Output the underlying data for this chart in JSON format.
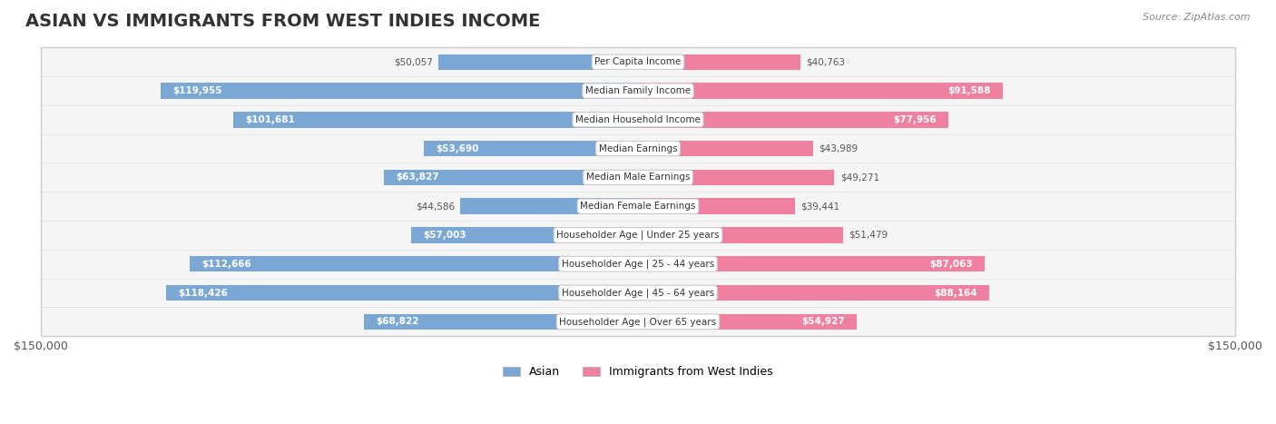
{
  "title": "ASIAN VS IMMIGRANTS FROM WEST INDIES INCOME",
  "source": "Source: ZipAtlas.com",
  "categories": [
    "Per Capita Income",
    "Median Family Income",
    "Median Household Income",
    "Median Earnings",
    "Median Male Earnings",
    "Median Female Earnings",
    "Householder Age | Under 25 years",
    "Householder Age | 25 - 44 years",
    "Householder Age | 45 - 64 years",
    "Householder Age | Over 65 years"
  ],
  "asian_values": [
    50057,
    119955,
    101681,
    53690,
    63827,
    44586,
    57003,
    112666,
    118426,
    68822
  ],
  "west_indies_values": [
    40763,
    91588,
    77956,
    43989,
    49271,
    39441,
    51479,
    87063,
    88164,
    54927
  ],
  "asian_color": "#7ba7d4",
  "west_indies_color": "#f080a0",
  "asian_color_dark": "#5b8ec4",
  "west_indies_color_dark": "#e8608a",
  "max_value": 150000,
  "background_color": "#ffffff",
  "bar_bg_color": "#f0f0f0",
  "row_bg_color": "#f5f5f5",
  "label_box_color": "#ffffff",
  "axis_label_left": "$150,000",
  "axis_label_right": "$150,000",
  "legend_asian": "Asian",
  "legend_west_indies": "Immigrants from West Indies",
  "title_fontsize": 14,
  "bar_height": 0.55,
  "fig_width": 14.06,
  "fig_height": 4.67
}
